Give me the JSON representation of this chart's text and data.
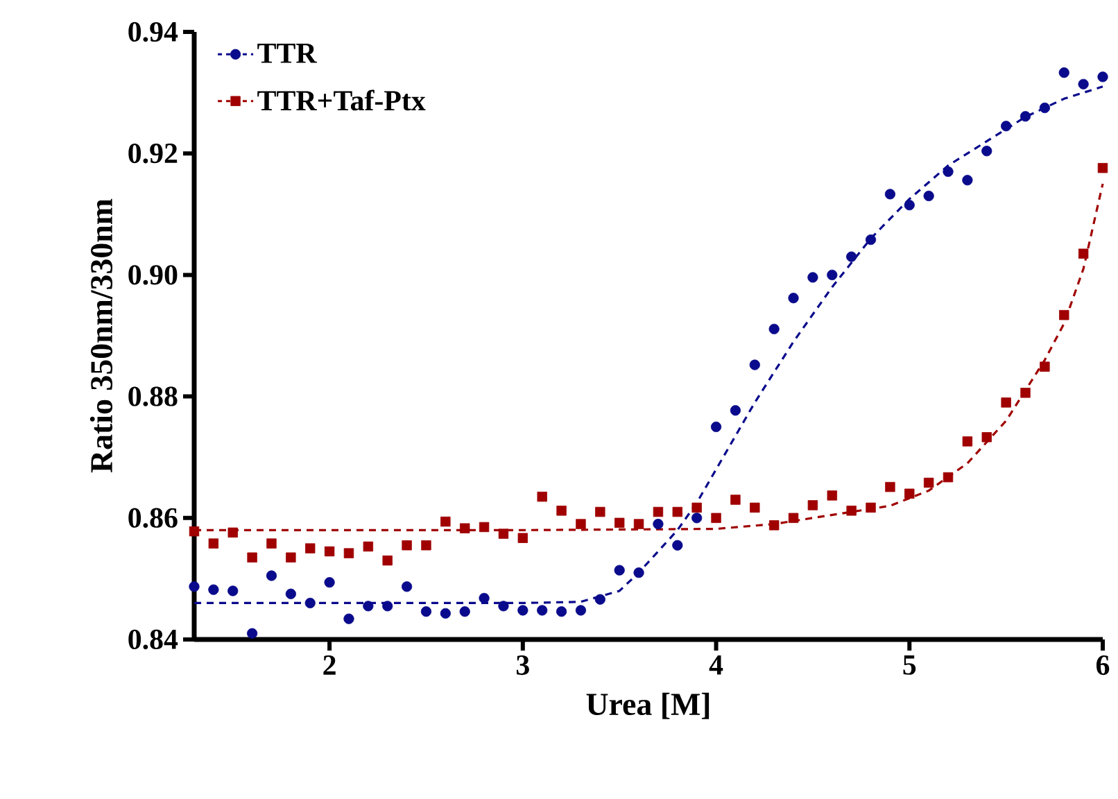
{
  "chart_data": {
    "type": "scatter",
    "xlabel": "Urea [M]",
    "ylabel": "Ratio 350nm/330nm",
    "xlim": [
      1.3,
      6
    ],
    "ylim": [
      0.84,
      0.94
    ],
    "xticks": [
      2,
      3,
      4,
      5,
      6
    ],
    "yticks": [
      {
        "value": 0.84,
        "label": "0.84"
      },
      {
        "value": 0.86,
        "label": "0.86"
      },
      {
        "value": 0.88,
        "label": "0.88"
      },
      {
        "value": 0.9,
        "label": "0.90"
      },
      {
        "value": 0.92,
        "label": "0.92"
      },
      {
        "value": 0.94,
        "label": "0.94"
      }
    ],
    "grid": false,
    "legend": "top left",
    "x": [
      1.3,
      1.4,
      1.5,
      1.6,
      1.7,
      1.8,
      1.9,
      2.0,
      2.1,
      2.2,
      2.3,
      2.4,
      2.5,
      2.6,
      2.7,
      2.8,
      2.9,
      3.0,
      3.1,
      3.2,
      3.3,
      3.4,
      3.5,
      3.6,
      3.7,
      3.8,
      3.9,
      4.0,
      4.1,
      4.2,
      4.3,
      4.4,
      4.5,
      4.6,
      4.7,
      4.8,
      4.9,
      5.0,
      5.1,
      5.2,
      5.3,
      5.4,
      5.5,
      5.6,
      5.7,
      5.8,
      5.9,
      6.0
    ],
    "series": [
      {
        "name": "TTR",
        "marker": "circle",
        "color": "#0a0a8c",
        "values": [
          0.8487,
          0.8482,
          0.848,
          0.841,
          0.8505,
          0.8475,
          0.846,
          0.8494,
          0.8434,
          0.8455,
          0.8455,
          0.8487,
          0.8446,
          0.8443,
          0.8446,
          0.8468,
          0.8455,
          0.8448,
          0.8448,
          0.8446,
          0.8448,
          0.8466,
          0.8514,
          0.851,
          0.859,
          0.8555,
          0.86,
          0.875,
          0.8777,
          0.8852,
          0.8911,
          0.8962,
          0.8996,
          0.9,
          0.903,
          0.9058,
          0.9133,
          0.9115,
          0.913,
          0.917,
          0.9156,
          0.9204,
          0.9245,
          0.9261,
          0.9275,
          0.9333,
          0.9314,
          0.9326
        ]
      },
      {
        "name": "TTR+Taf-Ptx",
        "marker": "square",
        "color": "#a00000",
        "values": [
          0.8578,
          0.8558,
          0.8576,
          0.8535,
          0.8558,
          0.8535,
          0.855,
          0.8545,
          0.8542,
          0.8553,
          0.853,
          0.8555,
          0.8555,
          0.8594,
          0.8583,
          0.8585,
          0.8574,
          0.8567,
          0.8635,
          0.8612,
          0.859,
          0.861,
          0.8592,
          0.859,
          0.861,
          0.861,
          0.8617,
          0.86,
          0.863,
          0.8617,
          0.8588,
          0.86,
          0.8621,
          0.8637,
          0.8612,
          0.8617,
          0.8651,
          0.864,
          0.8658,
          0.8667,
          0.8726,
          0.8733,
          0.879,
          0.8806,
          0.8849,
          0.8934,
          0.9035,
          0.9176
        ]
      },
      {
        "type": "line",
        "line_style": "dashed",
        "marker": "none",
        "color": "#0a0a8c",
        "x": [
          1.3,
          2.0,
          3.0,
          3.3,
          3.5,
          3.6,
          3.7,
          3.8,
          3.9,
          4.0,
          4.2,
          4.4,
          4.6,
          4.8,
          5.0,
          5.2,
          5.4,
          5.6,
          5.8,
          6.0
        ],
        "values": [
          0.846,
          0.846,
          0.846,
          0.8462,
          0.848,
          0.851,
          0.8545,
          0.858,
          0.8625,
          0.868,
          0.879,
          0.889,
          0.898,
          0.906,
          0.9125,
          0.918,
          0.922,
          0.926,
          0.929,
          0.931
        ]
      },
      {
        "type": "line",
        "line_style": "dashed",
        "marker": "none",
        "color": "#a00000",
        "x": [
          1.3,
          2.0,
          3.0,
          4.0,
          4.3,
          4.6,
          4.9,
          5.1,
          5.3,
          5.5,
          5.7,
          5.8,
          5.9,
          6.0
        ],
        "values": [
          0.858,
          0.858,
          0.858,
          0.8582,
          0.859,
          0.8605,
          0.862,
          0.8645,
          0.869,
          0.876,
          0.886,
          0.892,
          0.901,
          0.915
        ]
      }
    ]
  }
}
